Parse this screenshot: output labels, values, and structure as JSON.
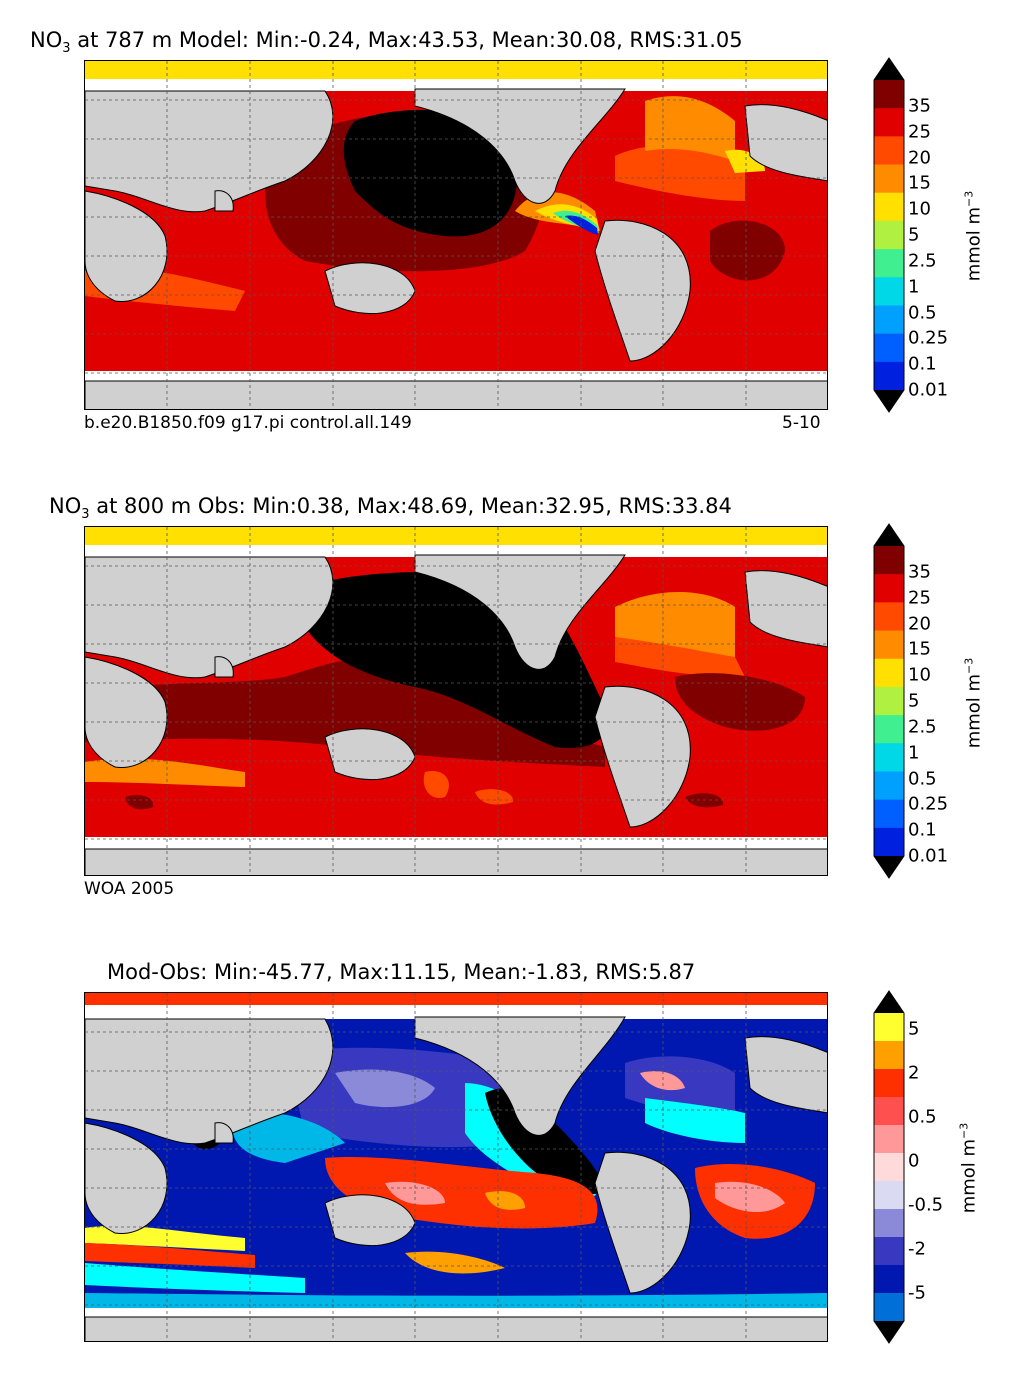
{
  "panels": [
    {
      "title_prefix": "NO",
      "title_sub": "3",
      "title_rest": " at 787 m Model: Min:-0.24, Max:43.53, Mean:30.08, RMS:31.05",
      "caption_left": "b.e20.B1850.f09 g17.pi control.all.149",
      "caption_right": "5-10"
    },
    {
      "title_prefix": "NO",
      "title_sub": "3",
      "title_rest": " at 800 m Obs: Min:0.38, Max:48.69, Mean:32.95, RMS:33.84",
      "caption_left": "WOA 2005",
      "caption_right": ""
    },
    {
      "title_prefix": "",
      "title_sub": "",
      "title_rest": "Mod-Obs: Min:-45.77, Max:11.15, Mean:-1.83, RMS:5.87",
      "caption_left": "",
      "caption_right": ""
    }
  ],
  "colorbars": {
    "abs": {
      "unit": "mmol m",
      "unit_sup": "−3",
      "ticks": [
        "35",
        "25",
        "20",
        "15",
        "10",
        "5",
        "2.5",
        "1",
        "0.5",
        "0.25",
        "0.1",
        "0.01"
      ],
      "colors": [
        "#800000",
        "#e00000",
        "#ff4a00",
        "#ff8c00",
        "#ffe000",
        "#b0f040",
        "#40f090",
        "#00d8e8",
        "#00a0ff",
        "#0060ff",
        "#0020e0",
        "#0000a0",
        "#00005a"
      ]
    },
    "diff": {
      "unit": "mmol m",
      "unit_sup": "−3",
      "ticks": [
        "5",
        "2",
        "0.5",
        "0",
        "-0.5",
        "-2",
        "-5"
      ],
      "colors": [
        "#ffff30",
        "#ffa000",
        "#ff3000",
        "#ff5050",
        "#ff9898",
        "#ffdada",
        "#dadaf2",
        "#8a8ad8",
        "#3838c0",
        "#0018b0",
        "#0070d8",
        "#00b8e8",
        "#00ffff"
      ]
    }
  },
  "colors": {
    "land": "#d0d0d0",
    "ice": "#ffffff",
    "grid": "#555555"
  }
}
